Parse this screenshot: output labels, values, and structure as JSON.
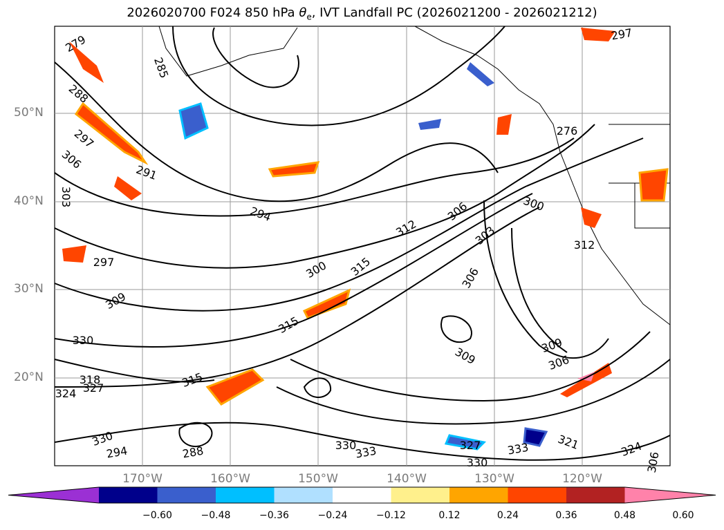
{
  "title_prefix": "2026020700 F024 850 hPa ",
  "title_theta": "θ",
  "title_sub": "e",
  "title_suffix": ", IVT Landfall PC (2026021200 - 2026021212)",
  "chart_data": {
    "type": "contour",
    "title": "2026020700 F024 850 hPa θe, IVT Landfall PC (2026021200 - 2026021212)",
    "xlim": [
      "180°",
      "110°W"
    ],
    "ylim": [
      "10°N",
      "60°N"
    ],
    "lat_ticks": [
      "50°N",
      "40°N",
      "30°N",
      "20°N"
    ],
    "lon_ticks": [
      "170°W",
      "160°W",
      "150°W",
      "140°W",
      "130°W",
      "120°W"
    ],
    "grid": true,
    "contour_labels": [
      "279",
      "285",
      "288",
      "291",
      "297",
      "306",
      "303",
      "297",
      "309",
      "330",
      "324",
      "327",
      "318",
      "315",
      "330",
      "294",
      "288",
      "294",
      "300",
      "312",
      "306",
      "315",
      "303",
      "306",
      "315",
      "309",
      "306",
      "309",
      "312",
      "321",
      "330",
      "333",
      "330",
      "324",
      "327",
      "333",
      "306",
      "300",
      "276",
      "297"
    ],
    "colorbar": {
      "ticks": [
        "−0.60",
        "−0.48",
        "−0.36",
        "−0.24",
        "−0.12",
        "0.12",
        "0.24",
        "0.36",
        "0.48",
        "0.60"
      ],
      "colors": [
        "#9b30d4",
        "#00008b",
        "#3a5fcd",
        "#00bfff",
        "#b0e0ff",
        "#ffffff",
        "#fff08c",
        "#ffa500",
        "#ff4500",
        "#b22222",
        "#ff82aa"
      ],
      "extend": "both"
    }
  }
}
